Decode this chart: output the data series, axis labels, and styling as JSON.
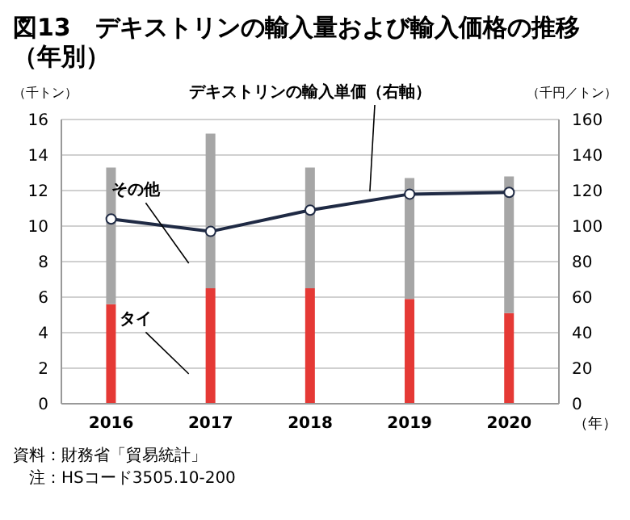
{
  "chart_data": {
    "type": "bar",
    "title": "図13　デキストリンの輸入量および輸入価格の推移（年別）",
    "ylabel": "（千トン）",
    "y2label": "（千円／トン）",
    "xlabel": "（年）",
    "categories": [
      "2016",
      "2017",
      "2018",
      "2019",
      "2020"
    ],
    "series": [
      {
        "name": "タイ",
        "color": "#e53935",
        "values": [
          5.6,
          6.5,
          6.5,
          5.9,
          5.1
        ]
      },
      {
        "name": "その他",
        "color": "#a6a6a6",
        "values": [
          7.7,
          8.7,
          6.8,
          6.8,
          7.7
        ]
      },
      {
        "name": "デキストリンの輸入単価（右軸）",
        "type": "line",
        "axis": "y2",
        "color": "#1f2a44",
        "values": [
          104,
          97,
          109,
          118,
          119
        ]
      }
    ],
    "stacked": true,
    "ylim": [
      0,
      16
    ],
    "yticks": [
      0,
      2,
      4,
      6,
      8,
      10,
      12,
      14,
      16
    ],
    "y2lim": [
      0,
      160
    ],
    "y2ticks": [
      0,
      20,
      40,
      60,
      80,
      100,
      120,
      140,
      160
    ],
    "grid": "y",
    "legend": false,
    "marker": "circle",
    "line_style": "solid",
    "annotations": [
      "資料：財務省「貿易統計」",
      "注：HSコード3505.10-200"
    ]
  }
}
